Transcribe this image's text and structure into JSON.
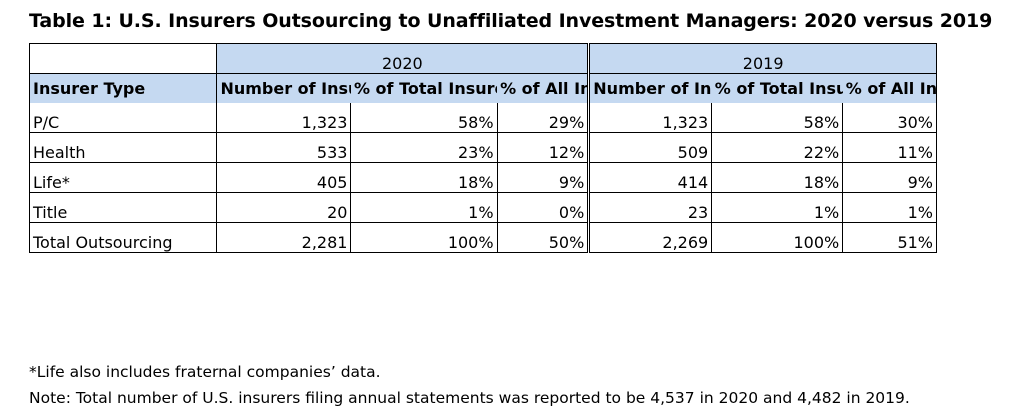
{
  "title": "Table 1: U.S. Insurers Outsourcing to Unaffiliated Investment Managers: 2020 versus 2019",
  "years": [
    "2020",
    "2019"
  ],
  "headers": {
    "insurer_type": "Insurer Type",
    "num_outsourcing": "Number of Insurers Outsourcing",
    "pct_total_outsourcing": "% of Total Insurers Outsourcing",
    "pct_all_insurers": "% of All Insurers"
  },
  "rows": [
    {
      "type": "P/C",
      "y2020": [
        "1,323",
        "58%",
        "29%"
      ],
      "y2019": [
        "1,323",
        "58%",
        "30%"
      ]
    },
    {
      "type": "Health",
      "y2020": [
        "533",
        "23%",
        "12%"
      ],
      "y2019": [
        "509",
        "22%",
        "11%"
      ]
    },
    {
      "type": "Life*",
      "y2020": [
        "405",
        "18%",
        "9%"
      ],
      "y2019": [
        "414",
        "18%",
        "9%"
      ]
    },
    {
      "type": "Title",
      "y2020": [
        "20",
        "1%",
        "0%"
      ],
      "y2019": [
        "23",
        "1%",
        "1%"
      ]
    },
    {
      "type": "Total Outsourcing",
      "y2020": [
        "2,281",
        "100%",
        "50%"
      ],
      "y2019": [
        "2,269",
        "100%",
        "51%"
      ]
    }
  ],
  "notes": [
    "*Life also includes fraternal companies’ data.",
    "Note: Total number of U.S. insurers filing annual statements was reported to be 4,537 in 2020 and 4,482 in 2019."
  ],
  "colors": {
    "header_fill": "#c5d9f1"
  }
}
